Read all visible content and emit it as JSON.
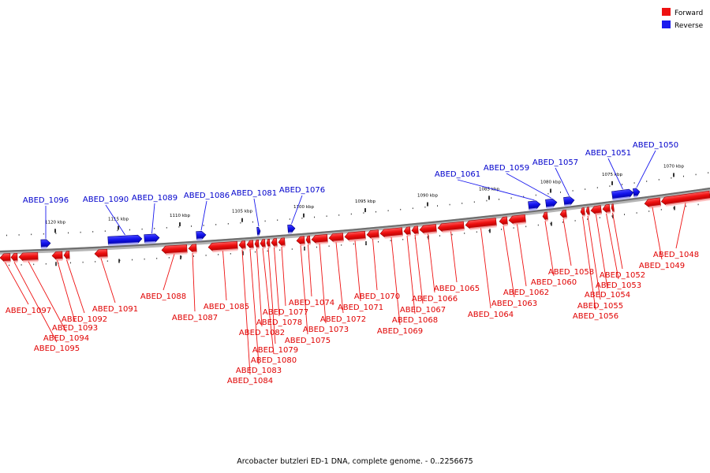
{
  "title": "Arcobacter butzleri ED-1 DNA, complete genome. - 0..2256675",
  "legend": [
    {
      "label": "Forward",
      "color": "#ee1111"
    },
    {
      "label": "Reverse",
      "color": "#1a1aee"
    }
  ],
  "ticks": [
    "1120 kbp",
    "1115 kbp",
    "1110 kbp",
    "1105 kbp",
    "1100 kbp",
    "1095 kbp",
    "1090 kbp",
    "1085 kbp",
    "1080 kbp",
    "1075 kbp",
    "1070 kbp"
  ],
  "genes": [
    {
      "id": "ABED_1097",
      "strand": "forward"
    },
    {
      "id": "ABED_1096",
      "strand": "reverse"
    },
    {
      "id": "ABED_1095",
      "strand": "forward"
    },
    {
      "id": "ABED_1094",
      "strand": "forward"
    },
    {
      "id": "ABED_1093",
      "strand": "forward"
    },
    {
      "id": "ABED_1092",
      "strand": "forward"
    },
    {
      "id": "ABED_1091",
      "strand": "forward"
    },
    {
      "id": "ABED_1090",
      "strand": "reverse"
    },
    {
      "id": "ABED_1089",
      "strand": "reverse"
    },
    {
      "id": "ABED_1088",
      "strand": "forward"
    },
    {
      "id": "ABED_1087",
      "strand": "forward"
    },
    {
      "id": "ABED_1086",
      "strand": "reverse"
    },
    {
      "id": "ABED_1085",
      "strand": "forward"
    },
    {
      "id": "ABED_1084",
      "strand": "forward"
    },
    {
      "id": "ABED_1083",
      "strand": "forward"
    },
    {
      "id": "ABED_1082",
      "strand": "forward"
    },
    {
      "id": "ABED_1081",
      "strand": "reverse"
    },
    {
      "id": "ABED_1080",
      "strand": "forward"
    },
    {
      "id": "ABED_1079",
      "strand": "forward"
    },
    {
      "id": "ABED_1078",
      "strand": "forward"
    },
    {
      "id": "ABED_1077",
      "strand": "forward"
    },
    {
      "id": "ABED_1076",
      "strand": "reverse"
    },
    {
      "id": "ABED_1075",
      "strand": "forward"
    },
    {
      "id": "ABED_1074",
      "strand": "forward"
    },
    {
      "id": "ABED_1073",
      "strand": "forward"
    },
    {
      "id": "ABED_1072",
      "strand": "forward"
    },
    {
      "id": "ABED_1071",
      "strand": "forward"
    },
    {
      "id": "ABED_1070",
      "strand": "forward"
    },
    {
      "id": "ABED_1069",
      "strand": "forward"
    },
    {
      "id": "ABED_1068",
      "strand": "forward"
    },
    {
      "id": "ABED_1067",
      "strand": "forward"
    },
    {
      "id": "ABED_1066",
      "strand": "forward"
    },
    {
      "id": "ABED_1065",
      "strand": "forward"
    },
    {
      "id": "ABED_1064",
      "strand": "forward"
    },
    {
      "id": "ABED_1063",
      "strand": "forward"
    },
    {
      "id": "ABED_1062",
      "strand": "forward"
    },
    {
      "id": "ABED_1061",
      "strand": "reverse"
    },
    {
      "id": "ABED_1060",
      "strand": "forward"
    },
    {
      "id": "ABED_1059",
      "strand": "reverse"
    },
    {
      "id": "ABED_1058",
      "strand": "forward"
    },
    {
      "id": "ABED_1057",
      "strand": "reverse"
    },
    {
      "id": "ABED_1056",
      "strand": "forward"
    },
    {
      "id": "ABED_1055",
      "strand": "forward"
    },
    {
      "id": "ABED_1054",
      "strand": "forward"
    },
    {
      "id": "ABED_1053",
      "strand": "forward"
    },
    {
      "id": "ABED_1052",
      "strand": "forward"
    },
    {
      "id": "ABED_1051",
      "strand": "reverse"
    },
    {
      "id": "ABED_1050",
      "strand": "reverse"
    },
    {
      "id": "ABED_1049",
      "strand": "forward"
    },
    {
      "id": "ABED_1048",
      "strand": "forward"
    }
  ]
}
